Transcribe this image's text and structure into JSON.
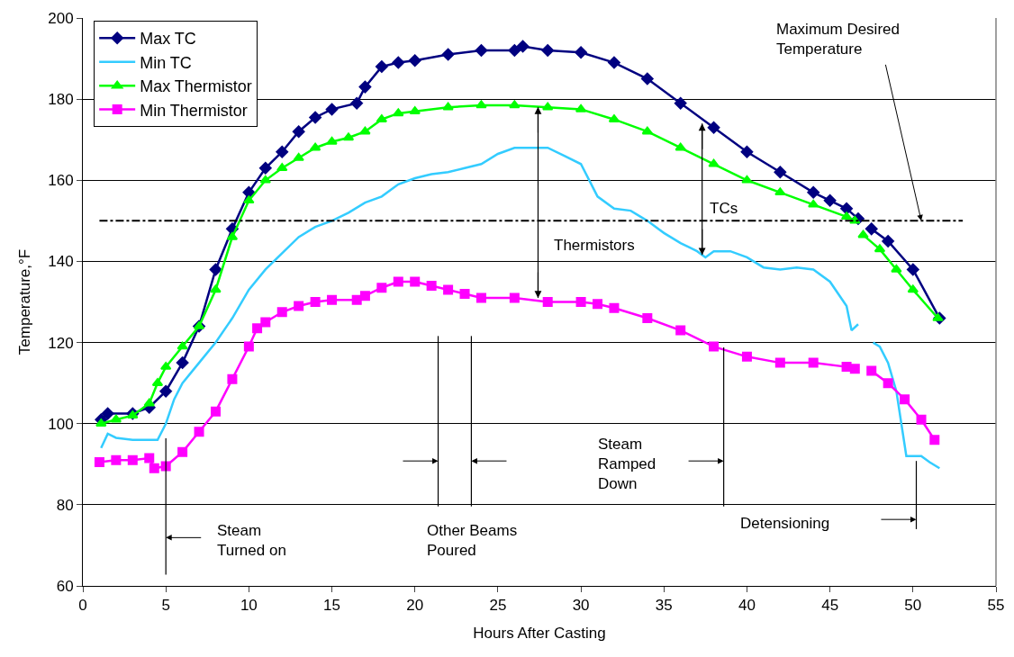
{
  "chart_data": {
    "type": "line",
    "xlabel": "Hours After Casting",
    "ylabel": "Temperature,°F",
    "xlim": [
      0,
      55
    ],
    "xticks": [
      0,
      5,
      10,
      15,
      20,
      25,
      30,
      35,
      40,
      45,
      50,
      55
    ],
    "ylim": [
      60,
      200
    ],
    "yticks": [
      60,
      80,
      100,
      120,
      140,
      160,
      180,
      200
    ],
    "grid": "y",
    "legend": "top left",
    "line_style": "solid",
    "series": [
      {
        "name": "Max TC",
        "color": "#000080",
        "marker": "diamond",
        "x": [
          1.1,
          1.5,
          3,
          4,
          5,
          6,
          7,
          8,
          9,
          10,
          11,
          12,
          13,
          14,
          15,
          16.5,
          17,
          18,
          19,
          20,
          22,
          24,
          26,
          26.5,
          28,
          30,
          32,
          34,
          36,
          38,
          40,
          42,
          44,
          45,
          46,
          46.7,
          47.1,
          47.5,
          48.5,
          50,
          51.6
        ],
        "values": [
          101,
          102.5,
          102.5,
          104,
          108,
          115,
          124,
          138,
          148,
          157,
          163,
          167,
          172,
          175.5,
          177.5,
          179,
          183,
          188,
          189,
          189.5,
          191,
          192,
          192,
          193,
          192,
          191.5,
          189,
          185,
          179,
          173,
          167,
          162,
          157,
          155,
          153,
          150.5,
          null,
          148,
          145,
          138,
          126
        ]
      },
      {
        "name": "Min TC",
        "color": "#33ccff",
        "marker": "none",
        "x": [
          1.1,
          1.5,
          2,
          3,
          4.5,
          5,
          5.5,
          6,
          7,
          8,
          9,
          10,
          11,
          12,
          13,
          14,
          15,
          16,
          17,
          18,
          19,
          20,
          21,
          22,
          23,
          24,
          25,
          26,
          28,
          29,
          30,
          31,
          32,
          33,
          34,
          35,
          36,
          37,
          37.5,
          38,
          39,
          40,
          41,
          42,
          43,
          44,
          45,
          46,
          46.3,
          46.7,
          47.2,
          47.6,
          48,
          48.5,
          49,
          49.3,
          49.6,
          50.5,
          51,
          51.6
        ],
        "values": [
          94,
          97.5,
          96.5,
          96,
          96,
          100,
          106,
          110,
          115,
          120,
          126,
          133,
          138,
          142,
          146,
          148.5,
          150,
          152,
          154.5,
          156,
          159,
          160.5,
          161.5,
          162,
          163,
          164,
          166.5,
          168,
          168,
          166,
          164,
          156,
          153,
          152.5,
          150,
          147,
          144.5,
          142.5,
          141,
          142.5,
          142.5,
          141,
          138.5,
          138,
          138.5,
          138,
          135,
          129,
          123,
          124.5,
          null,
          120,
          119,
          115,
          108,
          100,
          92,
          92,
          90.5,
          89
        ]
      },
      {
        "name": "Max Thermistor",
        "color": "#00ff00",
        "marker": "triangle",
        "x": [
          1.1,
          2,
          3,
          4,
          4.5,
          5,
          6,
          7,
          8,
          9,
          10,
          11,
          12,
          13,
          14,
          15,
          16,
          17,
          18,
          19,
          20,
          22,
          24,
          26,
          28,
          30,
          32,
          34,
          36,
          38,
          40,
          42,
          44,
          46,
          46.5,
          46.8,
          47,
          48,
          49,
          50,
          51.5
        ],
        "values": [
          100,
          101,
          102,
          105,
          110,
          114,
          119,
          124,
          133,
          146,
          155,
          160,
          163,
          165.5,
          168,
          169.5,
          170.5,
          172,
          175,
          176.5,
          177,
          178,
          178.5,
          178.5,
          178,
          177.5,
          175,
          172,
          168,
          164,
          160,
          157,
          154,
          151,
          150,
          null,
          146.5,
          143,
          138,
          133,
          126
        ]
      },
      {
        "name": "Min Thermistor",
        "color": "#ff00ff",
        "marker": "square",
        "x": [
          1,
          2,
          3,
          4,
          4.3,
          5,
          6,
          7,
          8,
          9,
          10,
          10.5,
          11,
          12,
          13,
          14,
          15,
          16.5,
          17,
          18,
          19,
          20,
          21,
          22,
          23,
          24,
          26,
          28,
          30,
          31,
          32,
          34,
          36,
          38,
          40,
          42,
          44,
          46,
          46.5,
          47,
          47.5,
          48.5,
          49.5,
          50.5,
          51.3
        ],
        "values": [
          90.5,
          91,
          91,
          91.5,
          89,
          89.5,
          93,
          98,
          103,
          111,
          119,
          123.5,
          125,
          127.5,
          129,
          130,
          130.5,
          130.5,
          131.5,
          133.5,
          135,
          135,
          134,
          133,
          132,
          131,
          131,
          130,
          130,
          129.5,
          128.5,
          126,
          123,
          119,
          116.5,
          115,
          115,
          114,
          113.5,
          null,
          113,
          110,
          106,
          101,
          96
        ]
      }
    ],
    "ref_lines": [
      {
        "axis": "y",
        "value": 150,
        "label": "Maximum Desired\nTemperature",
        "color": "#000000",
        "line_style": "dashdot"
      },
      {
        "axis": "x",
        "value": 5,
        "label": "Steam\nTurned on",
        "color": "#000000"
      },
      {
        "axis": "x",
        "value": 21.4,
        "label": "Other Beams\nPoured",
        "color": "#000000"
      },
      {
        "axis": "x",
        "value": 23.4,
        "color": "#000000"
      },
      {
        "axis": "x",
        "value": 38.6,
        "color": "#000000"
      },
      {
        "axis": "x",
        "value": 50.2,
        "color": "#000000"
      }
    ],
    "annotations": [
      {
        "text": "TCs",
        "x": 37.3,
        "y": 141.6
      },
      "Thermistors",
      "Steam\nRamped\nDown",
      "Detensioning"
    ]
  }
}
